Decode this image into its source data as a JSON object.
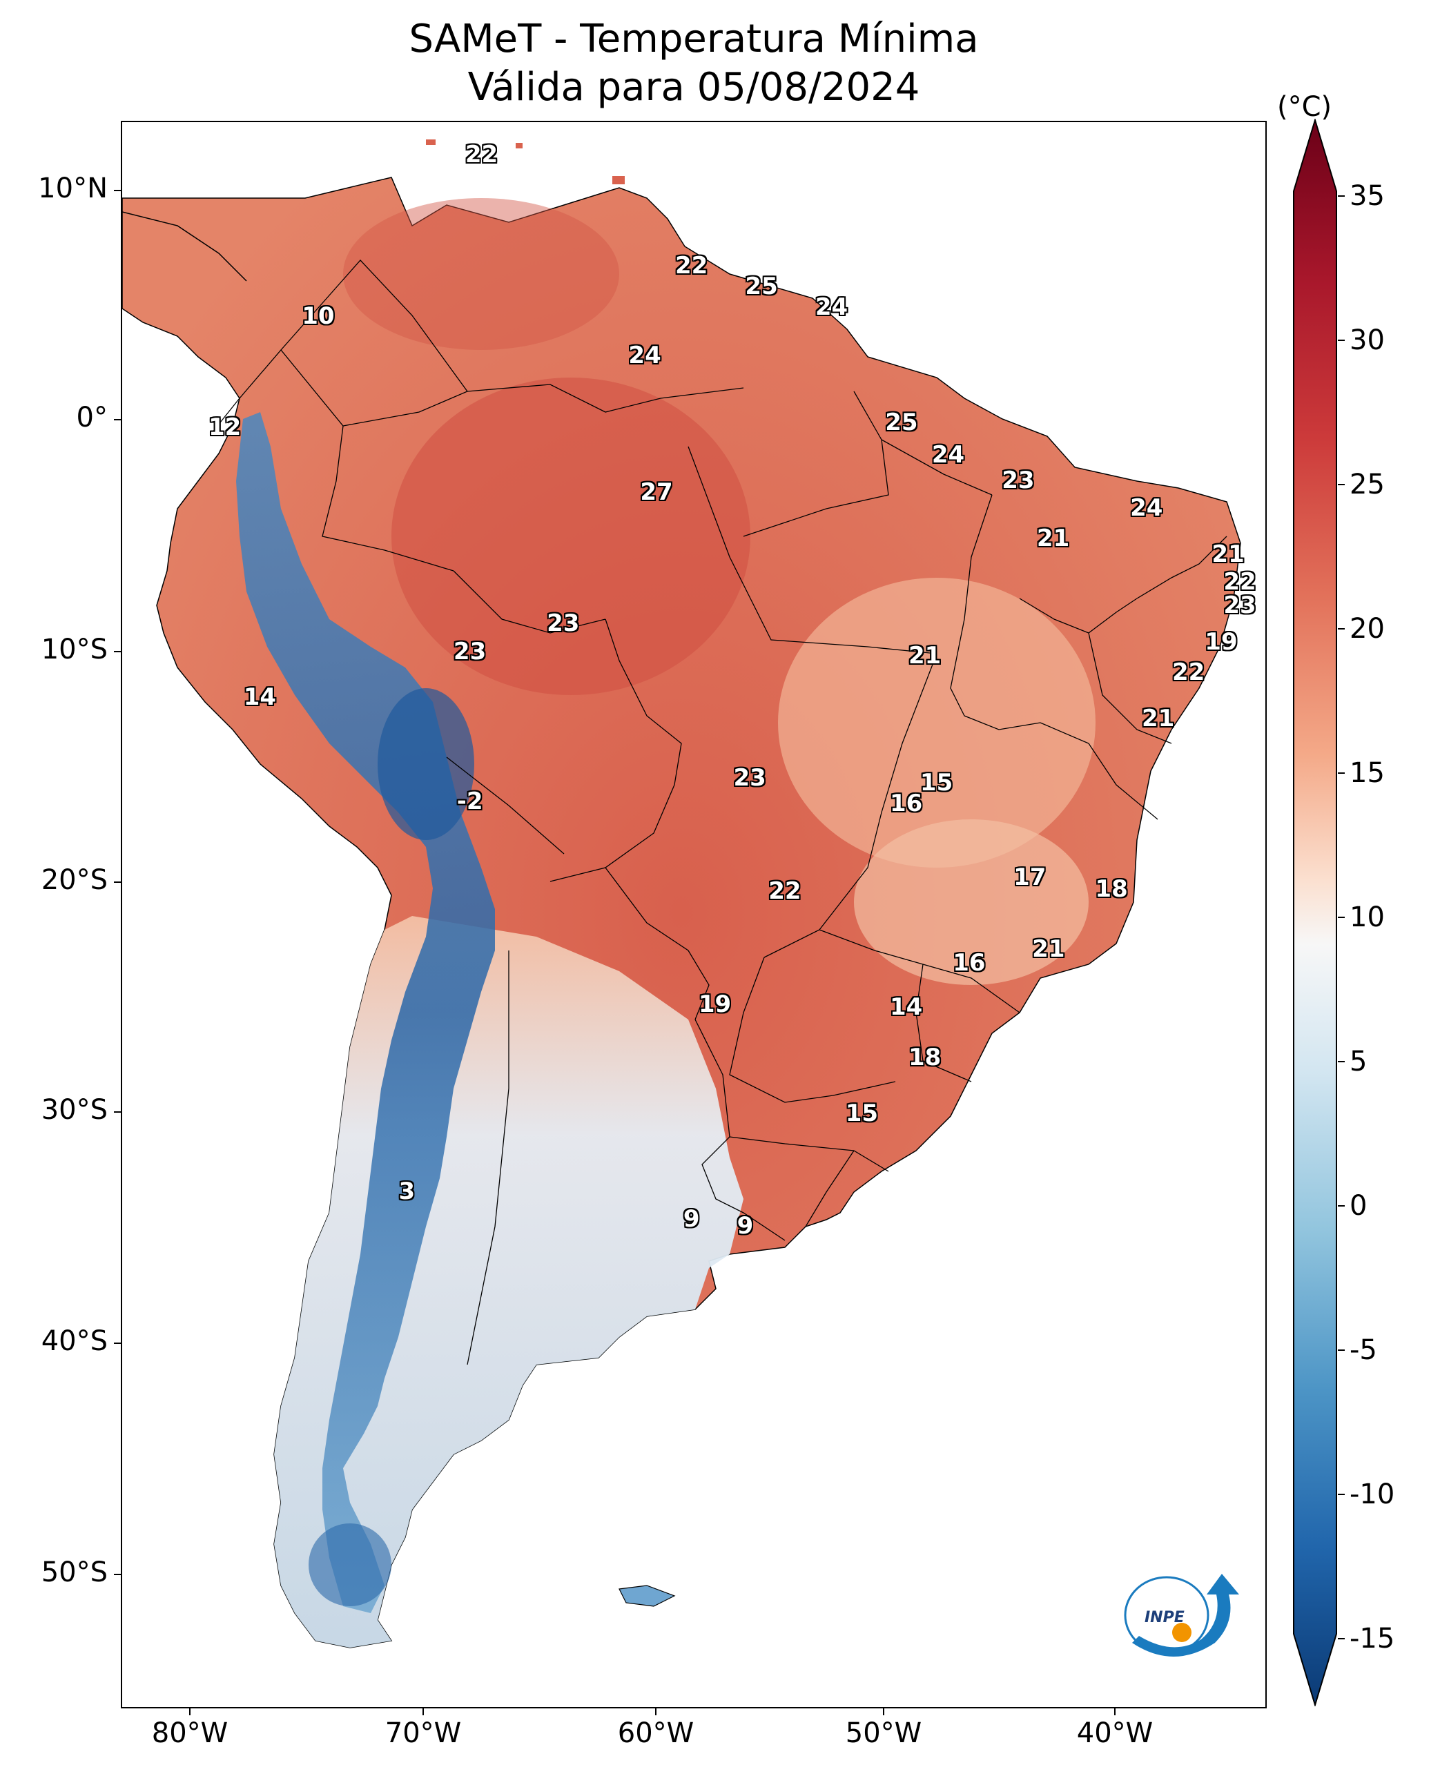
{
  "title": {
    "line1": "SAMeT - Temperatura Mínima",
    "line2": "Válida para 05/08/2024"
  },
  "axes": {
    "lat_labels": [
      "10°N",
      "0°",
      "10°S",
      "20°S",
      "30°S",
      "40°S",
      "50°S"
    ],
    "lon_labels": [
      "80°W",
      "70°W",
      "60°W",
      "50°W",
      "40°W"
    ]
  },
  "colorbar": {
    "unit": "(°C)",
    "ticks": [
      "35",
      "30",
      "25",
      "20",
      "15",
      "10",
      "5",
      "0",
      "-5",
      "-10",
      "-15"
    ],
    "range": [
      -15,
      35
    ],
    "colormap": "RdBu_r",
    "colors": {
      "min": "#0b3a75",
      "mid": "#f7f7f7",
      "max": "#6b0018"
    }
  },
  "stations": [
    {
      "value": "22",
      "lon": -67.5,
      "lat": 11.5
    },
    {
      "value": "10",
      "lon": -74.5,
      "lat": 4.5
    },
    {
      "value": "22",
      "lon": -58.5,
      "lat": 6.7
    },
    {
      "value": "25",
      "lon": -55.5,
      "lat": 5.8
    },
    {
      "value": "24",
      "lon": -52.5,
      "lat": 4.9
    },
    {
      "value": "24",
      "lon": -60.5,
      "lat": 2.8
    },
    {
      "value": "12",
      "lon": -78.5,
      "lat": -0.3
    },
    {
      "value": "25",
      "lon": -49.5,
      "lat": -0.1
    },
    {
      "value": "24",
      "lon": -47.5,
      "lat": -1.5
    },
    {
      "value": "27",
      "lon": -60.0,
      "lat": -3.1
    },
    {
      "value": "23",
      "lon": -44.5,
      "lat": -2.6
    },
    {
      "value": "24",
      "lon": -39.0,
      "lat": -3.8
    },
    {
      "value": "21",
      "lon": -43.0,
      "lat": -5.1
    },
    {
      "value": "21",
      "lon": -35.5,
      "lat": -5.8
    },
    {
      "value": "22",
      "lon": -35.0,
      "lat": -7.0
    },
    {
      "value": "23",
      "lon": -35.0,
      "lat": -8.0
    },
    {
      "value": "23",
      "lon": -64.0,
      "lat": -8.8
    },
    {
      "value": "23",
      "lon": -68.0,
      "lat": -10.0
    },
    {
      "value": "21",
      "lon": -48.5,
      "lat": -10.2
    },
    {
      "value": "19",
      "lon": -35.8,
      "lat": -9.6
    },
    {
      "value": "22",
      "lon": -37.2,
      "lat": -10.9
    },
    {
      "value": "14",
      "lon": -77.0,
      "lat": -12.0
    },
    {
      "value": "21",
      "lon": -38.5,
      "lat": -12.9
    },
    {
      "value": "-2",
      "lon": -68.0,
      "lat": -16.5
    },
    {
      "value": "23",
      "lon": -56.0,
      "lat": -15.5
    },
    {
      "value": "15",
      "lon": -48.0,
      "lat": -15.7
    },
    {
      "value": "16",
      "lon": -49.3,
      "lat": -16.6
    },
    {
      "value": "22",
      "lon": -54.5,
      "lat": -20.4
    },
    {
      "value": "17",
      "lon": -44.0,
      "lat": -19.8
    },
    {
      "value": "18",
      "lon": -40.5,
      "lat": -20.3
    },
    {
      "value": "21",
      "lon": -43.2,
      "lat": -22.9
    },
    {
      "value": "16",
      "lon": -46.6,
      "lat": -23.5
    },
    {
      "value": "19",
      "lon": -57.5,
      "lat": -25.3
    },
    {
      "value": "14",
      "lon": -49.3,
      "lat": -25.4
    },
    {
      "value": "18",
      "lon": -48.5,
      "lat": -27.6
    },
    {
      "value": "15",
      "lon": -51.2,
      "lat": -30.0
    },
    {
      "value": "3",
      "lon": -70.7,
      "lat": -33.4
    },
    {
      "value": "9",
      "lon": -58.5,
      "lat": -34.6
    },
    {
      "value": "9",
      "lon": -56.2,
      "lat": -34.9
    }
  ],
  "logo": {
    "text": "INPE",
    "name": "inpe-logo"
  }
}
